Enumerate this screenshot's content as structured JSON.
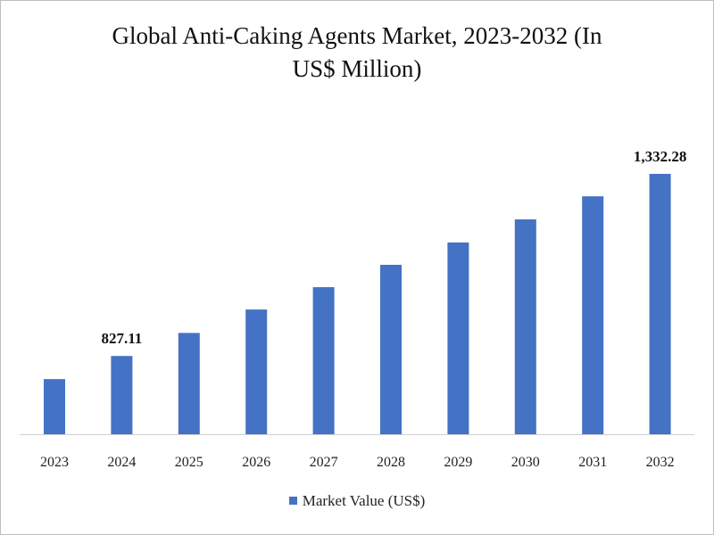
{
  "chart_data": {
    "type": "bar",
    "title": "Global Anti-Caking Agents Market, 2023-2032 (In US$ Million)",
    "title_lines": [
      "Global Anti-Caking Agents Market, 2023-2032 (In",
      "US$ Million)"
    ],
    "categories": [
      "2023",
      "2024",
      "2025",
      "2026",
      "2027",
      "2028",
      "2029",
      "2030",
      "2031",
      "2032"
    ],
    "series": [
      {
        "name": "Market Value (US$)",
        "color": "#4472c4",
        "values": [
          763,
          827.11,
          891,
          956,
          1018,
          1080,
          1142,
          1206,
          1270,
          1332.28
        ]
      }
    ],
    "data_labels": [
      {
        "category": "2024",
        "text": "827.11"
      },
      {
        "category": "2032",
        "text": "1,332.28"
      }
    ],
    "ylim": [
      610,
      1340
    ],
    "grid": false,
    "legend": "bottom"
  }
}
